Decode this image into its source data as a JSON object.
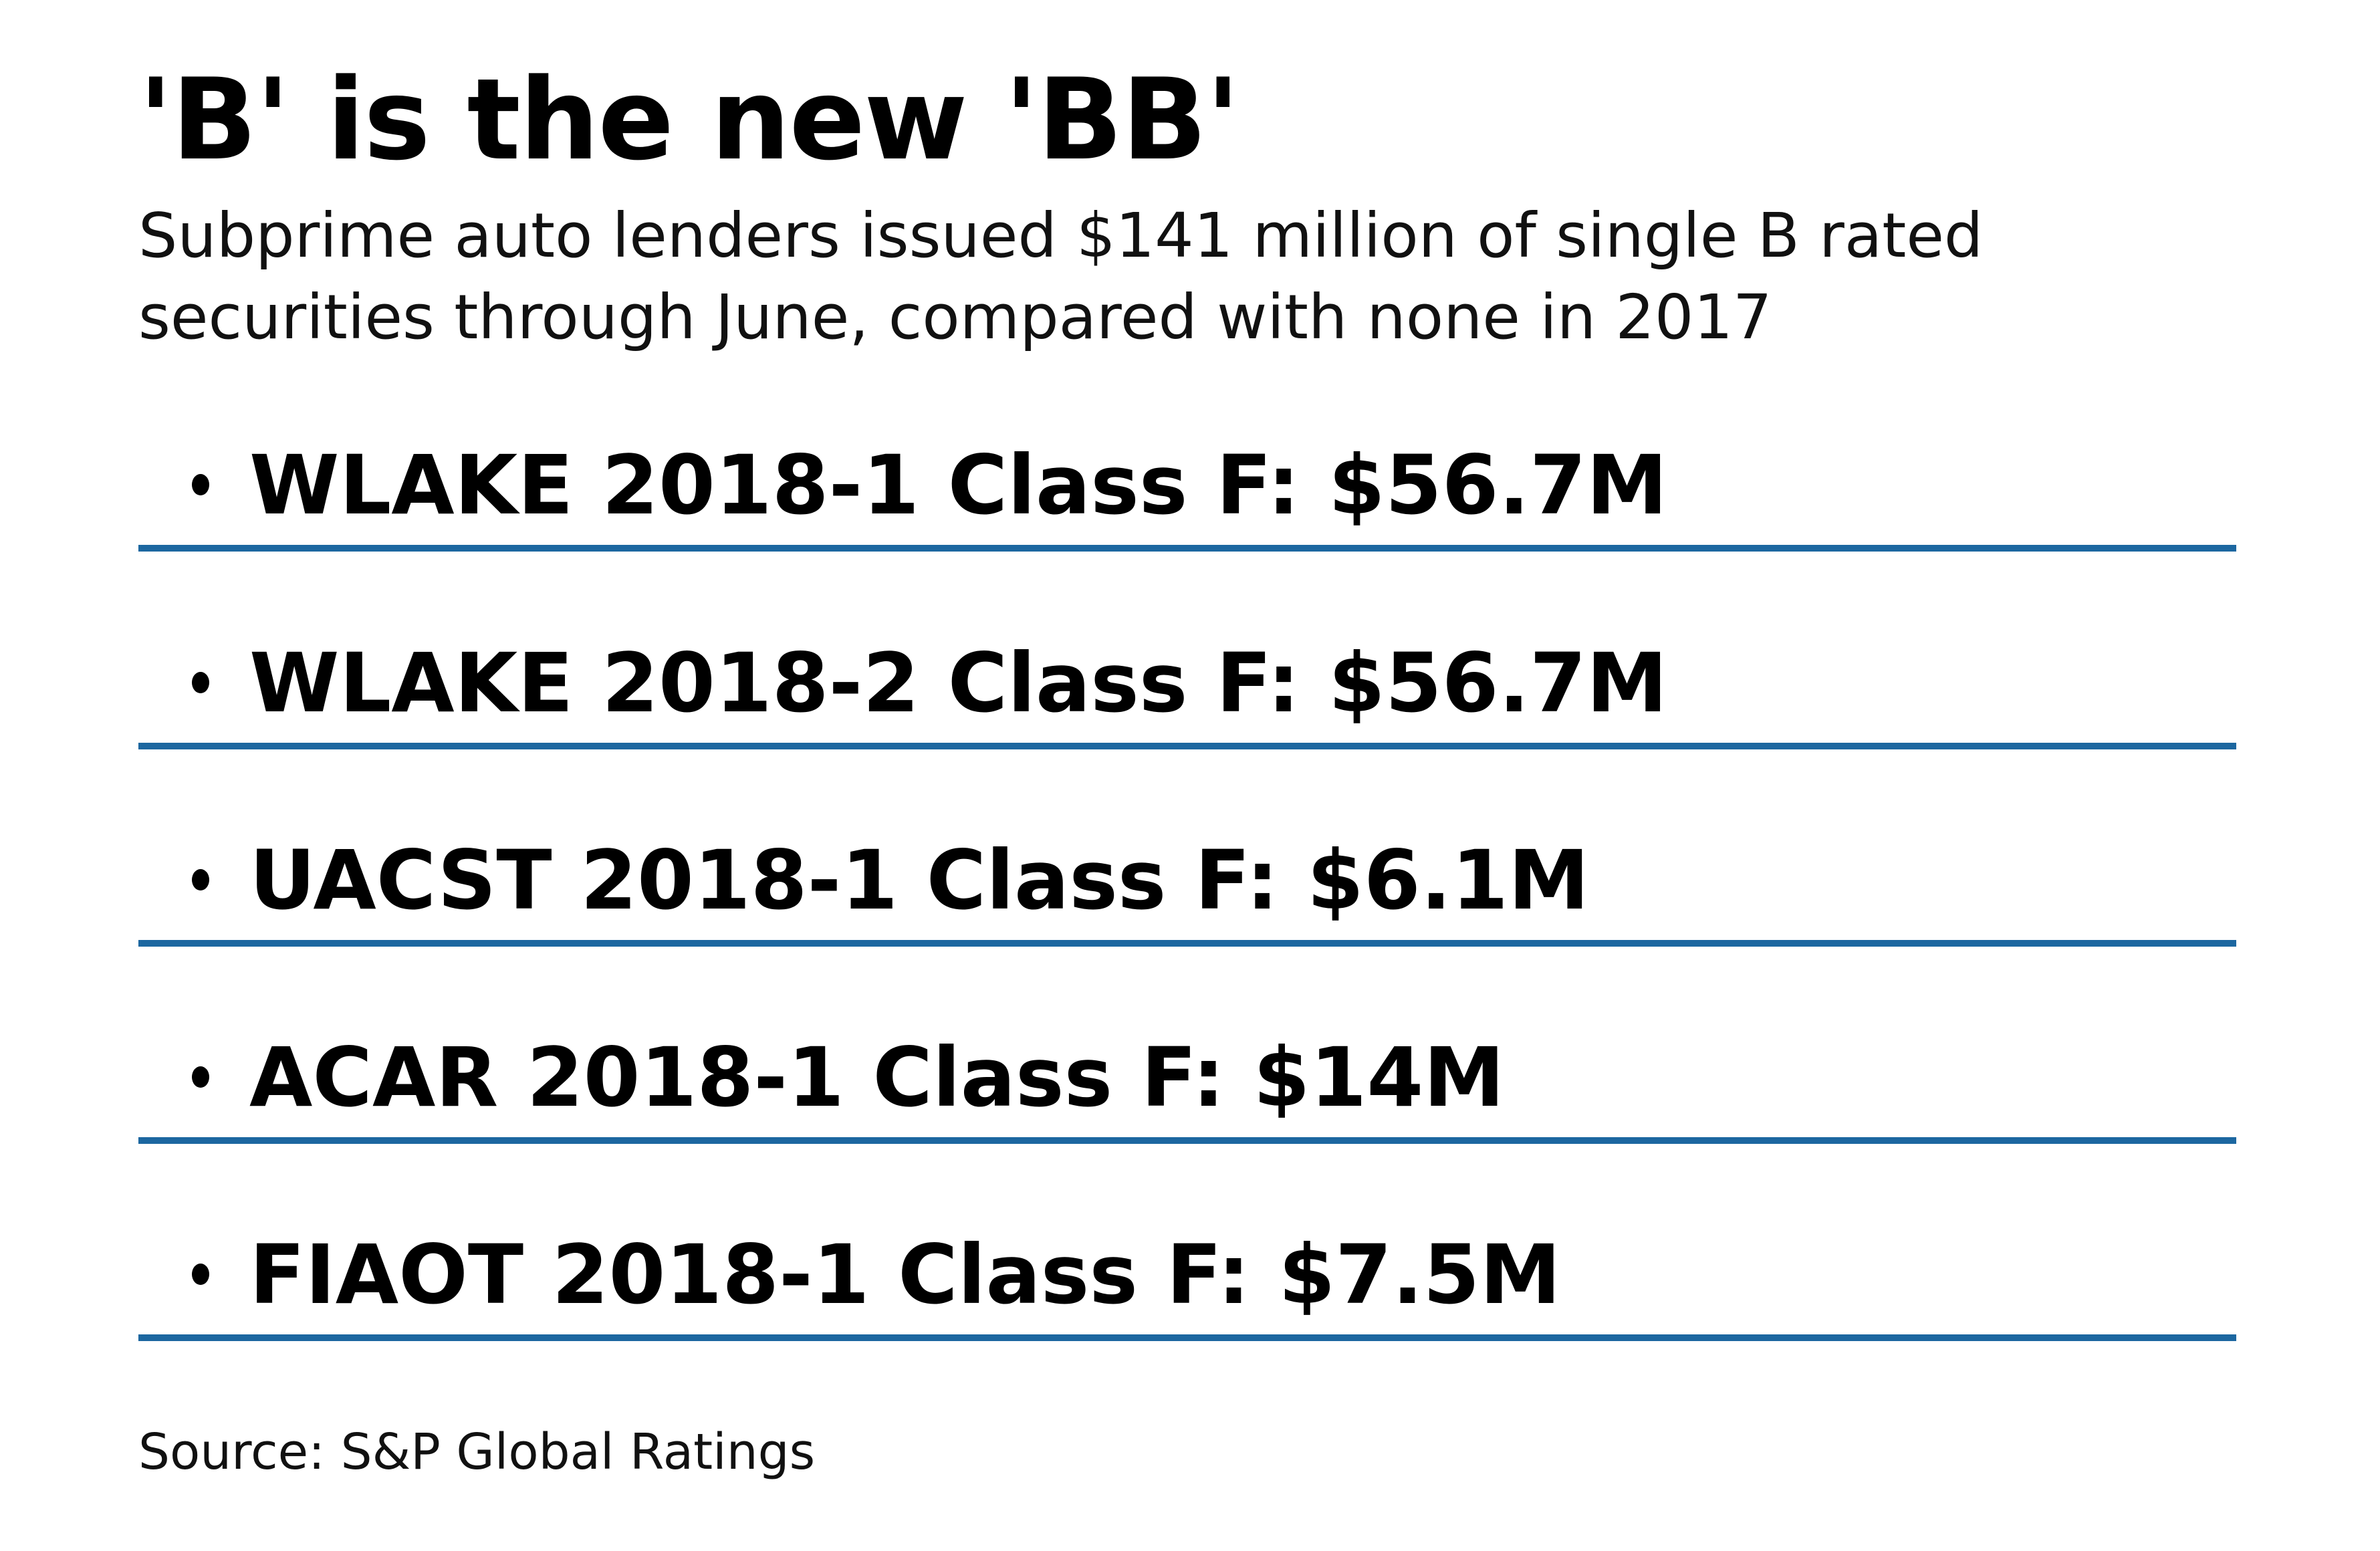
{
  "title": "'B' is the new 'BB'",
  "subtitle": "Subprime auto lenders issued $141 million of single B rated securities through June, compared with none in 2017",
  "items": [
    {
      "label": "WLAKE 2018-1 Class F: $56.7M"
    },
    {
      "label": "WLAKE 2018-2 Class F: $56.7M"
    },
    {
      "label": "UACST 2018-1 Class F: $6.1M"
    },
    {
      "label": "ACAR 2018-1 Class F: $14M"
    },
    {
      "label": "FIAOT 2018-1 Class F: $7.5M"
    }
  ],
  "source": "Source: S&P Global Ratings",
  "colors": {
    "rule": "#1c67a0"
  }
}
